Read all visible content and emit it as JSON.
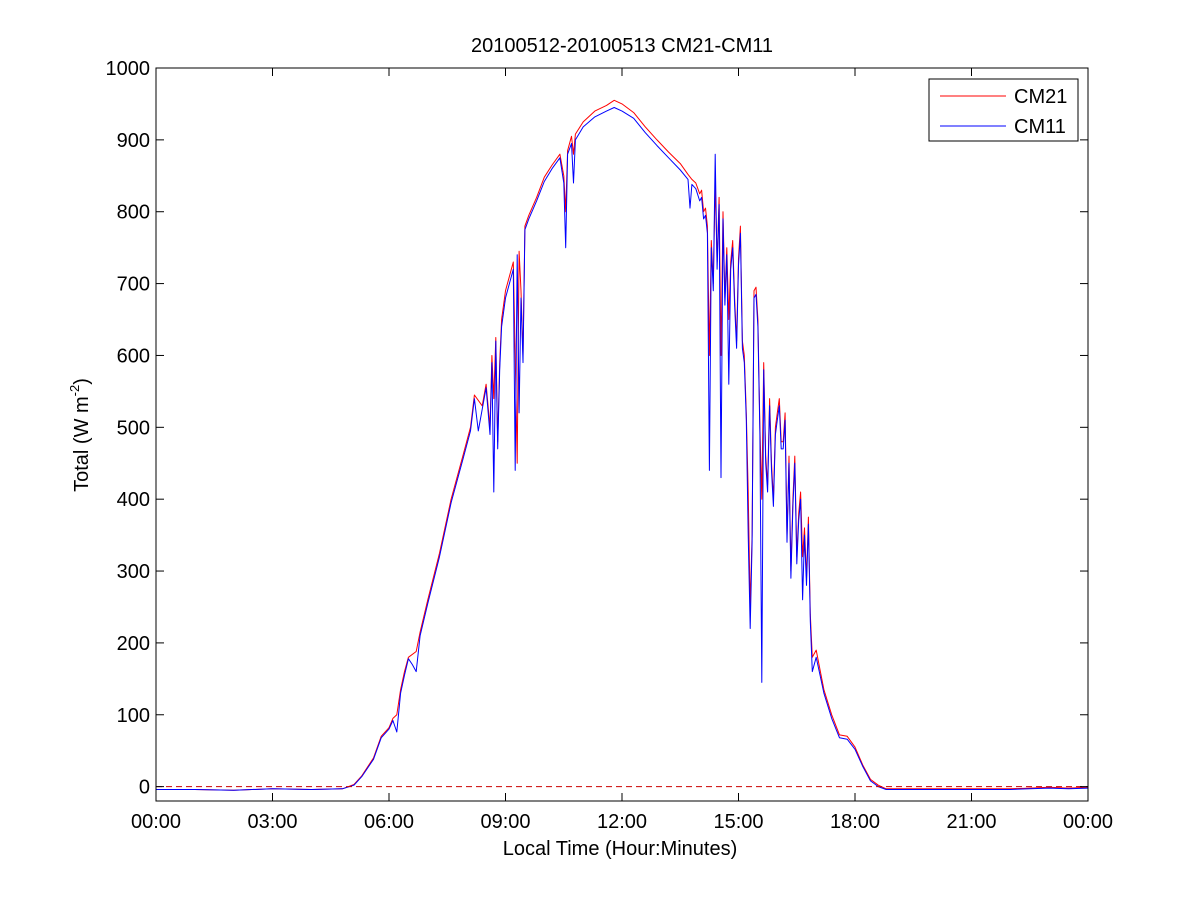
{
  "chart_data": {
    "type": "line",
    "title": "20100512-20100513 CM21-CM11",
    "xlabel": "Local Time (Hour:Minutes)",
    "ylabel": "Total (W m",
    "ylabel_sup": "-2",
    "ylabel_close": ")",
    "xlim": [
      0,
      24
    ],
    "ylim": [
      -20,
      1000
    ],
    "x_ticks": [
      0,
      3,
      6,
      9,
      12,
      15,
      18,
      21,
      24
    ],
    "x_tick_labels": [
      "00:00",
      "03:00",
      "06:00",
      "09:00",
      "12:00",
      "15:00",
      "18:00",
      "21:00",
      "00:00"
    ],
    "y_ticks": [
      0,
      100,
      200,
      300,
      400,
      500,
      600,
      700,
      800,
      900,
      1000
    ],
    "y_tick_labels": [
      "0",
      "100",
      "200",
      "300",
      "400",
      "500",
      "600",
      "700",
      "800",
      "900",
      "1000"
    ],
    "grid": false,
    "legend_position": "top-right",
    "reference_line": {
      "y": 0,
      "style": "dashed",
      "color": "#cc0000"
    },
    "series": [
      {
        "name": "CM21",
        "color": "#ff0000",
        "x": [
          0,
          1,
          2,
          3,
          4,
          4.8,
          5.1,
          5.3,
          5.6,
          5.8,
          6.0,
          6.1,
          6.2,
          6.3,
          6.4,
          6.5,
          6.7,
          6.8,
          7.0,
          7.3,
          7.6,
          7.9,
          8.1,
          8.2,
          8.4,
          8.5,
          8.6,
          8.65,
          8.7,
          8.75,
          8.8,
          8.85,
          8.9,
          9.0,
          9.1,
          9.2,
          9.25,
          9.3,
          9.35,
          9.4,
          9.45,
          9.5,
          9.6,
          9.8,
          10.0,
          10.2,
          10.4,
          10.5,
          10.55,
          10.6,
          10.7,
          10.75,
          10.8,
          11.0,
          11.3,
          11.6,
          11.8,
          12.0,
          12.3,
          12.6,
          12.9,
          13.2,
          13.5,
          13.7,
          13.8,
          13.9,
          14.0,
          14.05,
          14.1,
          14.15,
          14.2,
          14.25,
          14.3,
          14.35,
          14.4,
          14.45,
          14.5,
          14.55,
          14.6,
          14.65,
          14.7,
          14.75,
          14.8,
          14.85,
          14.9,
          14.95,
          15.0,
          15.05,
          15.1,
          15.15,
          15.2,
          15.25,
          15.3,
          15.35,
          15.4,
          15.45,
          15.5,
          15.55,
          15.6,
          15.65,
          15.7,
          15.75,
          15.8,
          15.85,
          15.9,
          15.95,
          16.0,
          16.05,
          16.1,
          16.15,
          16.2,
          16.25,
          16.3,
          16.35,
          16.4,
          16.45,
          16.5,
          16.55,
          16.6,
          16.65,
          16.7,
          16.75,
          16.8,
          16.85,
          16.9,
          17.0,
          17.2,
          17.4,
          17.6,
          17.8,
          18.0,
          18.2,
          18.4,
          18.6,
          18.8,
          19.0,
          20.0,
          21.0,
          22.0,
          22.5,
          23.0,
          23.5,
          24.0
        ],
        "y": [
          -4,
          -4,
          -5,
          -3,
          -4,
          -3,
          3,
          15,
          40,
          70,
          82,
          95,
          100,
          135,
          160,
          180,
          188,
          215,
          260,
          325,
          400,
          460,
          500,
          545,
          530,
          560,
          500,
          600,
          540,
          625,
          480,
          590,
          650,
          690,
          710,
          730,
          600,
          450,
          745,
          690,
          600,
          780,
          795,
          820,
          848,
          865,
          880,
          850,
          800,
          885,
          905,
          880,
          908,
          925,
          940,
          948,
          955,
          950,
          938,
          918,
          900,
          883,
          867,
          852,
          845,
          840,
          825,
          830,
          800,
          805,
          780,
          600,
          760,
          700,
          840,
          730,
          820,
          600,
          800,
          680,
          750,
          650,
          730,
          760,
          680,
          620,
          735,
          780,
          620,
          600,
          520,
          410,
          250,
          350,
          690,
          695,
          650,
          500,
          400,
          590,
          460,
          420,
          540,
          450,
          400,
          500,
          520,
          540,
          480,
          480,
          520,
          350,
          460,
          300,
          400,
          460,
          320,
          380,
          410,
          320,
          360,
          290,
          375,
          240,
          180,
          190,
          135,
          100,
          72,
          70,
          55,
          30,
          10,
          2,
          -3,
          -3,
          -3,
          -3,
          -3,
          -2,
          -1,
          -2,
          -1
        ]
      },
      {
        "name": "CM11",
        "color": "#0000ff",
        "x": [
          0,
          1,
          2,
          3,
          4,
          4.8,
          5.1,
          5.3,
          5.6,
          5.8,
          6.0,
          6.1,
          6.2,
          6.3,
          6.4,
          6.5,
          6.6,
          6.7,
          6.8,
          7.0,
          7.3,
          7.6,
          7.9,
          8.1,
          8.2,
          8.3,
          8.4,
          8.5,
          8.6,
          8.65,
          8.7,
          8.75,
          8.8,
          8.85,
          8.9,
          9.0,
          9.1,
          9.2,
          9.25,
          9.3,
          9.35,
          9.4,
          9.45,
          9.5,
          9.6,
          9.8,
          10.0,
          10.2,
          10.4,
          10.5,
          10.55,
          10.6,
          10.7,
          10.75,
          10.8,
          11.0,
          11.3,
          11.6,
          11.8,
          12.0,
          12.3,
          12.6,
          12.9,
          13.2,
          13.5,
          13.7,
          13.75,
          13.8,
          13.9,
          14.0,
          14.05,
          14.1,
          14.15,
          14.2,
          14.25,
          14.3,
          14.35,
          14.4,
          14.45,
          14.5,
          14.55,
          14.6,
          14.65,
          14.7,
          14.75,
          14.8,
          14.85,
          14.9,
          14.95,
          15.0,
          15.05,
          15.1,
          15.15,
          15.2,
          15.25,
          15.3,
          15.35,
          15.4,
          15.45,
          15.5,
          15.55,
          15.6,
          15.65,
          15.7,
          15.75,
          15.8,
          15.85,
          15.9,
          15.95,
          16.0,
          16.05,
          16.1,
          16.15,
          16.2,
          16.25,
          16.3,
          16.35,
          16.4,
          16.45,
          16.5,
          16.55,
          16.6,
          16.65,
          16.7,
          16.75,
          16.8,
          16.85,
          16.9,
          17.0,
          17.2,
          17.4,
          17.6,
          17.8,
          18.0,
          18.2,
          18.4,
          18.6,
          18.8,
          19.0,
          20.0,
          21.0,
          22.0,
          22.5,
          23.0,
          23.5,
          24.0
        ],
        "y": [
          -4,
          -4,
          -5,
          -3,
          -4,
          -3,
          2,
          14,
          38,
          68,
          80,
          92,
          76,
          130,
          155,
          178,
          170,
          160,
          210,
          255,
          320,
          395,
          455,
          495,
          540,
          495,
          525,
          555,
          490,
          590,
          410,
          620,
          470,
          580,
          640,
          680,
          700,
          720,
          440,
          740,
          520,
          680,
          590,
          775,
          790,
          815,
          842,
          860,
          875,
          840,
          750,
          880,
          895,
          840,
          900,
          918,
          932,
          940,
          945,
          940,
          930,
          910,
          892,
          875,
          858,
          845,
          805,
          838,
          832,
          815,
          820,
          790,
          795,
          770,
          440,
          750,
          690,
          880,
          720,
          810,
          430,
          790,
          670,
          740,
          560,
          720,
          750,
          670,
          610,
          725,
          770,
          610,
          590,
          510,
          350,
          220,
          340,
          680,
          685,
          640,
          490,
          145,
          580,
          450,
          410,
          530,
          440,
          390,
          490,
          510,
          530,
          470,
          470,
          510,
          340,
          450,
          290,
          390,
          450,
          310,
          370,
          400,
          260,
          350,
          280,
          365,
          230,
          160,
          180,
          130,
          95,
          68,
          66,
          52,
          28,
          8,
          0,
          -4,
          -4,
          -4,
          -4,
          -4,
          -3,
          -2,
          -3,
          -2
        ]
      }
    ]
  }
}
